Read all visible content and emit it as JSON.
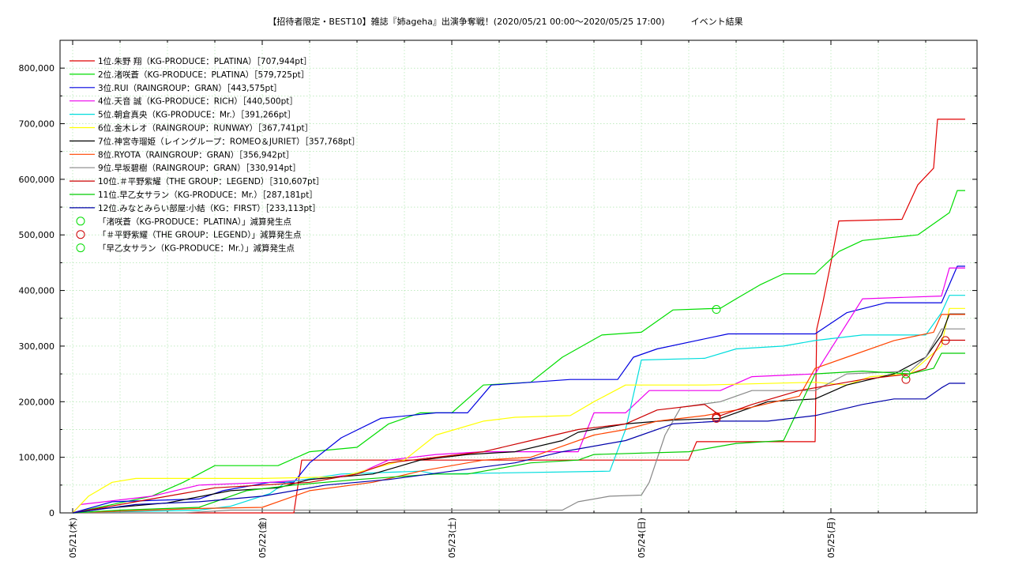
{
  "chart_data": {
    "type": "line",
    "title": "【招待者限定・BEST10】雑誌『姉ageha』出演争奪戦！(2020/05/21 00:00〜2020/05/25 17:00)　　　イベント結果",
    "x_tick_labels": [
      "05/21(木)",
      "05/22(金)",
      "05/23(土)",
      "05/24(日)",
      "05/25(月)"
    ],
    "xlim_hours": [
      0,
      113
    ],
    "y_tick_labels": [
      "0",
      "100,000",
      "200,000",
      "300,000",
      "400,000",
      "500,000",
      "600,000",
      "700,000",
      "800,000"
    ],
    "ylim": [
      0,
      850000
    ],
    "grid": true,
    "legend_position": "top-left",
    "series": [
      {
        "name": "1位.朱野 翔（KG-PRODUCE：PLATINA）［707,944pt］",
        "color": "#e00000",
        "points": [
          [
            0,
            0
          ],
          [
            28,
            0
          ],
          [
            29,
            95000
          ],
          [
            78,
            95000
          ],
          [
            79,
            128000
          ],
          [
            94,
            128000
          ],
          [
            94.2,
            330000
          ],
          [
            95,
            380000
          ],
          [
            96,
            450000
          ],
          [
            97,
            525000
          ],
          [
            105,
            528000
          ],
          [
            107,
            590000
          ],
          [
            109,
            620000
          ],
          [
            109.5,
            707944
          ],
          [
            113,
            707944
          ]
        ]
      },
      {
        "name": "2位.渚咲蒼（KG-PRODUCE：PLATINA）［579,725pt］",
        "color": "#00dd00",
        "points": [
          [
            0,
            0
          ],
          [
            5,
            15000
          ],
          [
            10,
            30000
          ],
          [
            14,
            55000
          ],
          [
            18,
            85000
          ],
          [
            26,
            85000
          ],
          [
            30,
            110000
          ],
          [
            36,
            118000
          ],
          [
            40,
            160000
          ],
          [
            44,
            180000
          ],
          [
            48,
            180000
          ],
          [
            52,
            230000
          ],
          [
            58,
            235000
          ],
          [
            62,
            280000
          ],
          [
            67,
            320000
          ],
          [
            72,
            325000
          ],
          [
            76,
            365000
          ],
          [
            82,
            368000
          ],
          [
            84,
            385000
          ],
          [
            87,
            410000
          ],
          [
            90,
            430000
          ],
          [
            94,
            430000
          ],
          [
            97,
            470000
          ],
          [
            100,
            490000
          ],
          [
            107,
            500000
          ],
          [
            111,
            540000
          ],
          [
            112,
            579725
          ],
          [
            113,
            579725
          ]
        ]
      },
      {
        "name": "3位.RUI（RAINGROUP：GRAN）［443,575pt］",
        "color": "#0000e0",
        "points": [
          [
            0,
            0
          ],
          [
            5,
            20000
          ],
          [
            16,
            25000
          ],
          [
            19,
            40000
          ],
          [
            25,
            55000
          ],
          [
            28,
            55000
          ],
          [
            30,
            90000
          ],
          [
            34,
            135000
          ],
          [
            39,
            170000
          ],
          [
            46,
            180000
          ],
          [
            50,
            180000
          ],
          [
            53,
            230000
          ],
          [
            63,
            240000
          ],
          [
            69,
            240000
          ],
          [
            71,
            280000
          ],
          [
            74,
            295000
          ],
          [
            79,
            310000
          ],
          [
            83,
            322000
          ],
          [
            94,
            322000
          ],
          [
            98,
            360000
          ],
          [
            103,
            378000
          ],
          [
            110,
            378000
          ],
          [
            112,
            443575
          ],
          [
            113,
            443575
          ]
        ]
      },
      {
        "name": "4位.天音 誠（KG-PRODUCE：RICH）［440,500pt］",
        "color": "#ee00ee",
        "points": [
          [
            0,
            0
          ],
          [
            1,
            15000
          ],
          [
            10,
            30000
          ],
          [
            16,
            50000
          ],
          [
            25,
            55000
          ],
          [
            30,
            60000
          ],
          [
            36,
            70000
          ],
          [
            40,
            95000
          ],
          [
            46,
            105000
          ],
          [
            52,
            110000
          ],
          [
            64,
            110000
          ],
          [
            66,
            180000
          ],
          [
            70,
            180000
          ],
          [
            73,
            220000
          ],
          [
            82,
            220000
          ],
          [
            86,
            245000
          ],
          [
            94,
            250000
          ],
          [
            100,
            385000
          ],
          [
            110,
            390000
          ],
          [
            111,
            440500
          ],
          [
            113,
            440500
          ]
        ]
      },
      {
        "name": "5位.朝倉真央（KG-PRODUCE：Mr.）［391,266pt］",
        "color": "#00dddd",
        "points": [
          [
            0,
            0
          ],
          [
            16,
            5000
          ],
          [
            20,
            12000
          ],
          [
            25,
            35000
          ],
          [
            27,
            55000
          ],
          [
            34,
            70000
          ],
          [
            44,
            75000
          ],
          [
            46,
            70000
          ],
          [
            68,
            75000
          ],
          [
            70,
            150000
          ],
          [
            72,
            275000
          ],
          [
            80,
            278000
          ],
          [
            84,
            295000
          ],
          [
            90,
            300000
          ],
          [
            94,
            310000
          ],
          [
            100,
            320000
          ],
          [
            108,
            320000
          ],
          [
            110,
            360000
          ],
          [
            111,
            391266
          ],
          [
            113,
            391266
          ]
        ]
      },
      {
        "name": "6位.金木レオ（RAINGROUP：RUNWAY）［367,741pt］",
        "color": "#ffff00",
        "points": [
          [
            0,
            0
          ],
          [
            2,
            30000
          ],
          [
            5,
            55000
          ],
          [
            8,
            62000
          ],
          [
            24,
            62000
          ],
          [
            34,
            65000
          ],
          [
            42,
            95000
          ],
          [
            46,
            140000
          ],
          [
            52,
            165000
          ],
          [
            56,
            172000
          ],
          [
            63,
            175000
          ],
          [
            66,
            200000
          ],
          [
            70,
            230000
          ],
          [
            80,
            230000
          ],
          [
            94,
            235000
          ],
          [
            98,
            230000
          ],
          [
            101,
            245000
          ],
          [
            106,
            250000
          ],
          [
            110,
            300000
          ],
          [
            111,
            367741
          ],
          [
            113,
            367741
          ]
        ]
      },
      {
        "name": "7位.神宮寺瑠姫（レイングループ：ROMEO＆JURIET）［357,768pt］",
        "color": "#000000",
        "points": [
          [
            0,
            0
          ],
          [
            4,
            8000
          ],
          [
            12,
            18000
          ],
          [
            20,
            40000
          ],
          [
            26,
            45000
          ],
          [
            30,
            60000
          ],
          [
            38,
            70000
          ],
          [
            44,
            95000
          ],
          [
            50,
            105000
          ],
          [
            56,
            110000
          ],
          [
            62,
            130000
          ],
          [
            64,
            145000
          ],
          [
            70,
            160000
          ],
          [
            76,
            167000
          ],
          [
            82,
            170000
          ],
          [
            88,
            200000
          ],
          [
            94,
            205000
          ],
          [
            98,
            230000
          ],
          [
            104,
            250000
          ],
          [
            108,
            280000
          ],
          [
            110,
            320000
          ],
          [
            111,
            357768
          ],
          [
            113,
            357768
          ]
        ]
      },
      {
        "name": "8位.RYOTA（RAINGROUP：GRAN）［356,942pt］",
        "color": "#ff4400",
        "points": [
          [
            0,
            0
          ],
          [
            16,
            8000
          ],
          [
            24,
            10000
          ],
          [
            30,
            40000
          ],
          [
            38,
            55000
          ],
          [
            44,
            75000
          ],
          [
            52,
            95000
          ],
          [
            58,
            100000
          ],
          [
            62,
            120000
          ],
          [
            66,
            140000
          ],
          [
            70,
            150000
          ],
          [
            74,
            165000
          ],
          [
            80,
            175000
          ],
          [
            86,
            190000
          ],
          [
            92,
            210000
          ],
          [
            94,
            260000
          ],
          [
            98,
            280000
          ],
          [
            104,
            310000
          ],
          [
            109,
            325000
          ],
          [
            110,
            356942
          ],
          [
            113,
            356942
          ]
        ]
      },
      {
        "name": "9位.早坂碧樹（RAINGROUP：GRAN）［330,914pt］",
        "color": "#888888",
        "points": [
          [
            0,
            0
          ],
          [
            14,
            0
          ],
          [
            20,
            5000
          ],
          [
            40,
            5000
          ],
          [
            62,
            5000
          ],
          [
            64,
            20000
          ],
          [
            68,
            30000
          ],
          [
            72,
            32000
          ],
          [
            73,
            55000
          ],
          [
            75,
            140000
          ],
          [
            77,
            190000
          ],
          [
            82,
            200000
          ],
          [
            86,
            220000
          ],
          [
            94,
            220000
          ],
          [
            98,
            250000
          ],
          [
            106,
            255000
          ],
          [
            108,
            280000
          ],
          [
            110,
            330914
          ],
          [
            113,
            330914
          ]
        ]
      },
      {
        "name": "10位.＃平野紫耀（THE GROUP：LEGEND）［310,607pt］",
        "color": "#cc0000",
        "points": [
          [
            0,
            0
          ],
          [
            8,
            20000
          ],
          [
            14,
            35000
          ],
          [
            18,
            45000
          ],
          [
            24,
            50000
          ],
          [
            30,
            55000
          ],
          [
            36,
            70000
          ],
          [
            40,
            90000
          ],
          [
            46,
            100000
          ],
          [
            52,
            110000
          ],
          [
            58,
            130000
          ],
          [
            64,
            150000
          ],
          [
            70,
            160000
          ],
          [
            74,
            185000
          ],
          [
            80,
            195000
          ],
          [
            82,
            175000
          ],
          [
            86,
            195000
          ],
          [
            92,
            220000
          ],
          [
            96,
            230000
          ],
          [
            100,
            240000
          ],
          [
            106,
            250000
          ],
          [
            108,
            260000
          ],
          [
            110,
            310607
          ],
          [
            113,
            310607
          ]
        ]
      },
      {
        "name": "11位.早乙女サラン（KG-PRODUCE：Mr.）［287,181pt］",
        "color": "#00cc00",
        "points": [
          [
            0,
            0
          ],
          [
            6,
            5000
          ],
          [
            16,
            10000
          ],
          [
            22,
            40000
          ],
          [
            28,
            50000
          ],
          [
            36,
            60000
          ],
          [
            46,
            70000
          ],
          [
            50,
            70000
          ],
          [
            58,
            90000
          ],
          [
            64,
            95000
          ],
          [
            66,
            105000
          ],
          [
            78,
            110000
          ],
          [
            84,
            125000
          ],
          [
            90,
            130000
          ],
          [
            94,
            250000
          ],
          [
            100,
            255000
          ],
          [
            106,
            250000
          ],
          [
            109,
            260000
          ],
          [
            110,
            287181
          ],
          [
            113,
            287181
          ]
        ]
      },
      {
        "name": "12位.みなとみらい部屋:小結（KG：FIRST）［233,113pt］",
        "color": "#0000aa",
        "points": [
          [
            0,
            0
          ],
          [
            8,
            15000
          ],
          [
            16,
            20000
          ],
          [
            24,
            30000
          ],
          [
            32,
            50000
          ],
          [
            40,
            60000
          ],
          [
            48,
            75000
          ],
          [
            56,
            90000
          ],
          [
            62,
            110000
          ],
          [
            70,
            130000
          ],
          [
            76,
            160000
          ],
          [
            82,
            165000
          ],
          [
            88,
            165000
          ],
          [
            94,
            175000
          ],
          [
            100,
            195000
          ],
          [
            104,
            205000
          ],
          [
            108,
            205000
          ],
          [
            110,
            225000
          ],
          [
            111,
            233113
          ],
          [
            113,
            233113
          ]
        ]
      }
    ],
    "markers": [
      {
        "name": "「渚咲蒼（KG-PRODUCE：PLATINA）」減算発生点",
        "color": "#00dd00",
        "x": 81.5,
        "y": 366000
      },
      {
        "name": "「＃平野紫耀（THE GROUP：LEGEND）」減算発生点",
        "color": "#cc0000",
        "points": [
          [
            81.5,
            173000
          ],
          [
            81.5,
            170000
          ],
          [
            105.5,
            240000
          ],
          [
            110.5,
            310000
          ]
        ]
      },
      {
        "name": "「早乙女サラン（KG-PRODUCE：Mr.）」減算発生点",
        "color": "#00dd00",
        "x": 105.5,
        "y": 250000
      }
    ]
  }
}
